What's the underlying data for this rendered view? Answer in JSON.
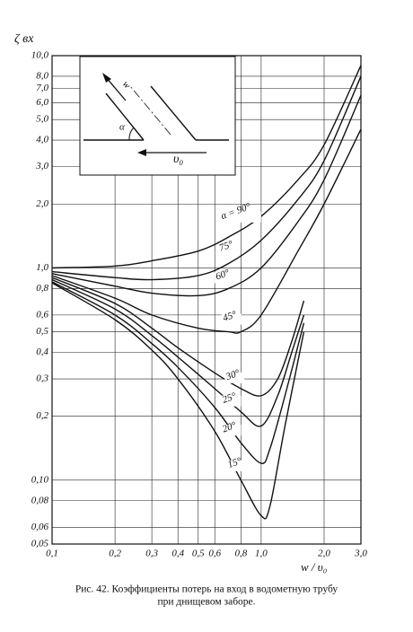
{
  "chart_data": {
    "type": "line",
    "log_x": true,
    "log_y": true,
    "grid": true,
    "y_label": "ζ вх",
    "x_label": "w / υ₀",
    "xlim": [
      0.1,
      3.0
    ],
    "ylim": [
      0.05,
      10.0
    ],
    "xticks": [
      {
        "value": 0.1,
        "label": "0,1"
      },
      {
        "value": 0.2,
        "label": "0,2"
      },
      {
        "value": 0.3,
        "label": "0,3"
      },
      {
        "value": 0.4,
        "label": "0,4"
      },
      {
        "value": 0.5,
        "label": "0,5"
      },
      {
        "value": 0.6,
        "label": "0,6"
      },
      {
        "value": 0.8,
        "label": "0,8"
      },
      {
        "value": 1.0,
        "label": "1,0"
      },
      {
        "value": 2.0,
        "label": "2,0"
      },
      {
        "value": 3.0,
        "label": "3,0"
      }
    ],
    "yticks": [
      {
        "value": 10.0,
        "label": "10,0"
      },
      {
        "value": 8.0,
        "label": "8,0"
      },
      {
        "value": 7.0,
        "label": "7,0"
      },
      {
        "value": 6.0,
        "label": "6,0"
      },
      {
        "value": 5.0,
        "label": "5,0"
      },
      {
        "value": 4.0,
        "label": "4,0"
      },
      {
        "value": 3.0,
        "label": "3,0"
      },
      {
        "value": 2.0,
        "label": "2,0"
      },
      {
        "value": 1.0,
        "label": "1,0"
      },
      {
        "value": 0.8,
        "label": "0,8"
      },
      {
        "value": 0.6,
        "label": "0,6"
      },
      {
        "value": 0.5,
        "label": "0,5"
      },
      {
        "value": 0.4,
        "label": "0,4"
      },
      {
        "value": 0.3,
        "label": "0,3"
      },
      {
        "value": 0.2,
        "label": "0,2"
      },
      {
        "value": 0.1,
        "label": "0,10"
      },
      {
        "value": 0.08,
        "label": "0,08"
      },
      {
        "value": 0.06,
        "label": "0,06"
      },
      {
        "value": 0.05,
        "label": "0,05"
      }
    ],
    "series": [
      {
        "name": "α = 90°",
        "color": "#111",
        "x": [
          0.1,
          0.2,
          0.3,
          0.5,
          0.7,
          1.0,
          1.5,
          2.0,
          3.0
        ],
        "values": [
          1.0,
          1.02,
          1.08,
          1.2,
          1.4,
          1.75,
          2.6,
          3.8,
          9.0
        ]
      },
      {
        "name": "75°",
        "color": "#111",
        "x": [
          0.1,
          0.2,
          0.3,
          0.5,
          0.7,
          1.0,
          1.5,
          2.0,
          3.0
        ],
        "values": [
          0.96,
          0.9,
          0.88,
          0.92,
          1.05,
          1.35,
          2.1,
          3.2,
          8.0
        ]
      },
      {
        "name": "60°",
        "color": "#111",
        "x": [
          0.1,
          0.2,
          0.3,
          0.5,
          0.7,
          1.0,
          1.5,
          2.0,
          3.0
        ],
        "values": [
          0.94,
          0.82,
          0.76,
          0.74,
          0.8,
          1.0,
          1.65,
          2.6,
          6.5
        ]
      },
      {
        "name": "45°",
        "color": "#111",
        "x": [
          0.1,
          0.2,
          0.3,
          0.5,
          0.7,
          0.8,
          1.0,
          1.5,
          2.0,
          3.0
        ],
        "values": [
          0.92,
          0.72,
          0.6,
          0.52,
          0.5,
          0.5,
          0.6,
          1.2,
          2.0,
          4.5
        ]
      },
      {
        "name": "30°",
        "color": "#111",
        "x": [
          0.1,
          0.2,
          0.3,
          0.4,
          0.6,
          0.8,
          1.0,
          1.2,
          1.4,
          1.6
        ],
        "values": [
          0.9,
          0.68,
          0.52,
          0.42,
          0.32,
          0.27,
          0.25,
          0.3,
          0.45,
          0.7
        ]
      },
      {
        "name": "25°",
        "color": "#111",
        "x": [
          0.1,
          0.2,
          0.3,
          0.4,
          0.6,
          0.8,
          1.0,
          1.2,
          1.4,
          1.6
        ],
        "values": [
          0.88,
          0.64,
          0.48,
          0.38,
          0.27,
          0.21,
          0.18,
          0.25,
          0.4,
          0.6
        ]
      },
      {
        "name": "20°",
        "color": "#111",
        "x": [
          0.1,
          0.2,
          0.3,
          0.4,
          0.6,
          0.8,
          1.0,
          1.1,
          1.3,
          1.6
        ],
        "values": [
          0.86,
          0.6,
          0.44,
          0.34,
          0.22,
          0.15,
          0.12,
          0.14,
          0.25,
          0.55
        ]
      },
      {
        "name": "15°",
        "color": "#111",
        "x": [
          0.1,
          0.2,
          0.3,
          0.4,
          0.6,
          0.8,
          1.0,
          1.1,
          1.3,
          1.6
        ],
        "values": [
          0.85,
          0.57,
          0.41,
          0.3,
          0.17,
          0.1,
          0.068,
          0.075,
          0.18,
          0.5
        ]
      }
    ]
  },
  "inset": {
    "flow_label": "w",
    "angle_label": "α",
    "velocity_label": "υ₀"
  },
  "caption": {
    "line1": "Рис. 42. Коэффициенты потерь на вход в водометную трубу",
    "line2": "при днищевом заборе."
  }
}
